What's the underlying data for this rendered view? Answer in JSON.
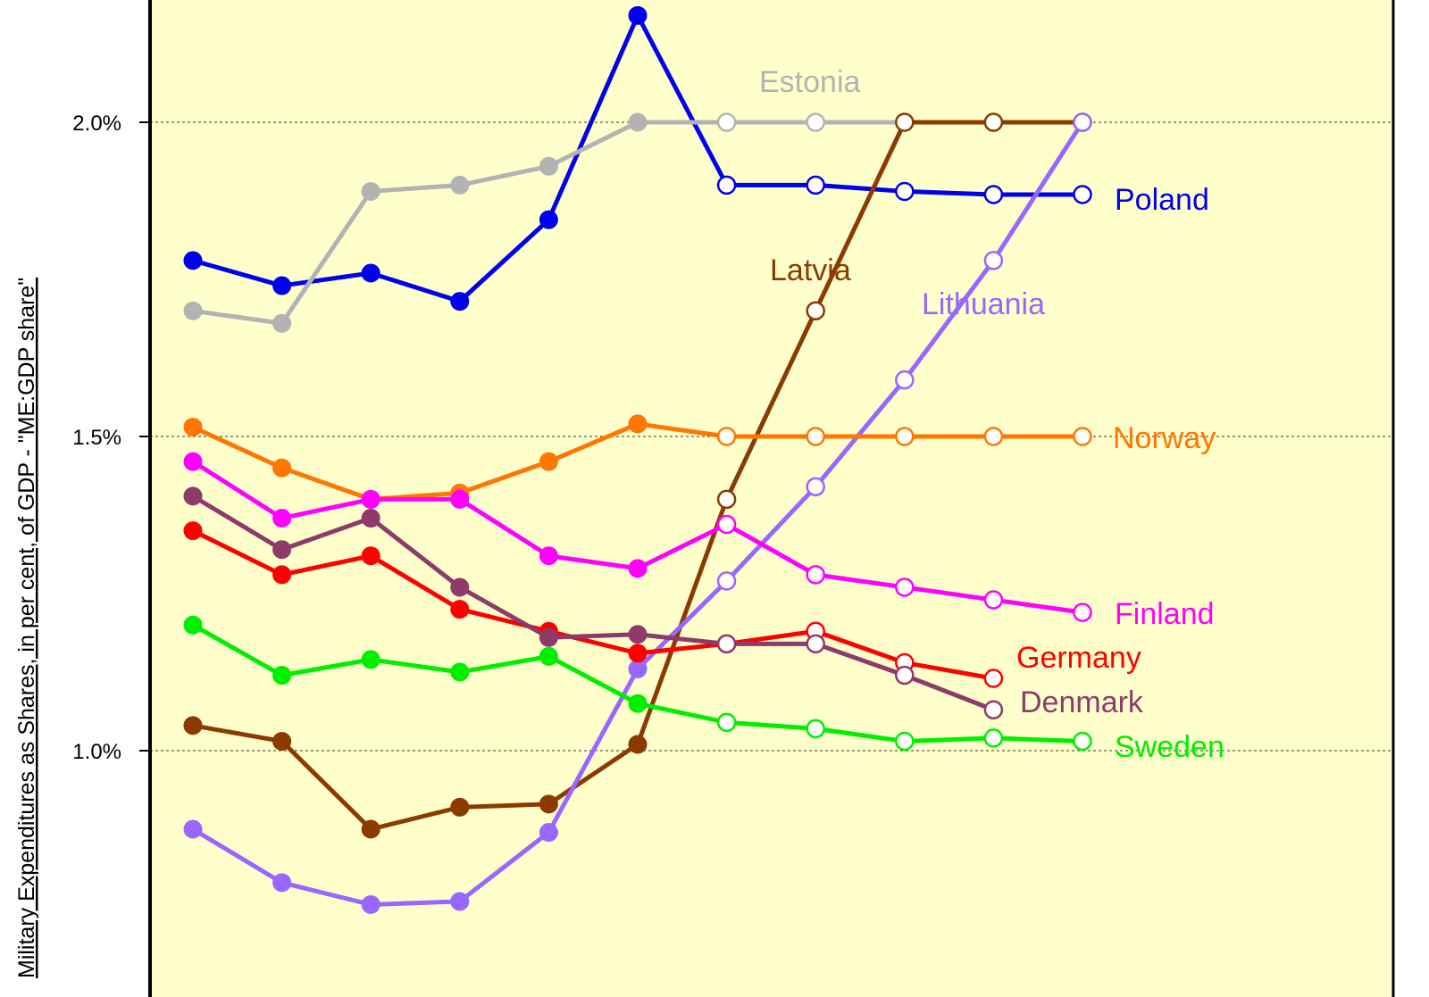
{
  "chart_data": {
    "type": "line",
    "title": "",
    "xlabel": "",
    "ylabel": "Military Expenditures  as Shares, in per cent, of GDP - \"ME:GDP share\"",
    "ylim": [
      0.65,
      2.2
    ],
    "x": [
      1,
      2,
      3,
      4,
      5,
      6,
      7,
      8,
      9,
      10,
      11
    ],
    "y_ticks": [
      {
        "value": 1.0,
        "label": "1.0%"
      },
      {
        "value": 1.5,
        "label": "1.5%"
      },
      {
        "value": 2.0,
        "label": "2.0%"
      }
    ],
    "grid": "horizontal dotted at ticks",
    "plot_background": "#ffffcc",
    "legend": "direct labels at line ends",
    "filled_markers_through_index": 5,
    "series": [
      {
        "name": "Poland",
        "color": "#0000ee",
        "values": [
          1.78,
          1.74,
          1.76,
          1.715,
          1.845,
          2.17,
          1.9,
          1.9,
          1.89,
          1.885,
          1.885
        ]
      },
      {
        "name": "Estonia",
        "color": "#b3b3b3",
        "values": [
          1.7,
          1.68,
          1.89,
          1.9,
          1.93,
          2.0,
          2.0,
          2.0,
          2.0,
          2.0,
          2.0
        ]
      },
      {
        "name": "Latvia",
        "color": "#8b3a00",
        "values": [
          1.04,
          1.015,
          0.875,
          0.91,
          0.915,
          1.01,
          1.4,
          1.7,
          2.0,
          2.0,
          2.0
        ]
      },
      {
        "name": "Lithuania",
        "color": "#9966ff",
        "values": [
          0.875,
          0.79,
          0.755,
          0.76,
          0.87,
          1.13,
          1.27,
          1.42,
          1.59,
          1.78,
          2.0
        ]
      },
      {
        "name": "Norway",
        "color": "#ff7700",
        "values": [
          1.515,
          1.45,
          1.4,
          1.41,
          1.46,
          1.52,
          1.5,
          1.5,
          1.5,
          1.5,
          1.5
        ]
      },
      {
        "name": "Finland",
        "color": "#ff00ff",
        "values": [
          1.46,
          1.37,
          1.4,
          1.4,
          1.31,
          1.29,
          1.36,
          1.28,
          1.26,
          1.24,
          1.22
        ]
      },
      {
        "name": "Germany",
        "color": "#ff0000",
        "values": [
          1.35,
          1.28,
          1.31,
          1.225,
          1.19,
          1.155,
          1.17,
          1.19,
          1.14,
          1.115,
          null
        ]
      },
      {
        "name": "Denmark",
        "color": "#8e3a6a",
        "values": [
          1.405,
          1.32,
          1.37,
          1.26,
          1.18,
          1.185,
          1.17,
          1.17,
          1.12,
          1.065,
          null
        ]
      },
      {
        "name": "Sweden",
        "color": "#00ee00",
        "values": [
          1.2,
          1.12,
          1.145,
          1.125,
          1.15,
          1.075,
          1.045,
          1.035,
          1.015,
          1.02,
          1.015
        ]
      }
    ]
  }
}
